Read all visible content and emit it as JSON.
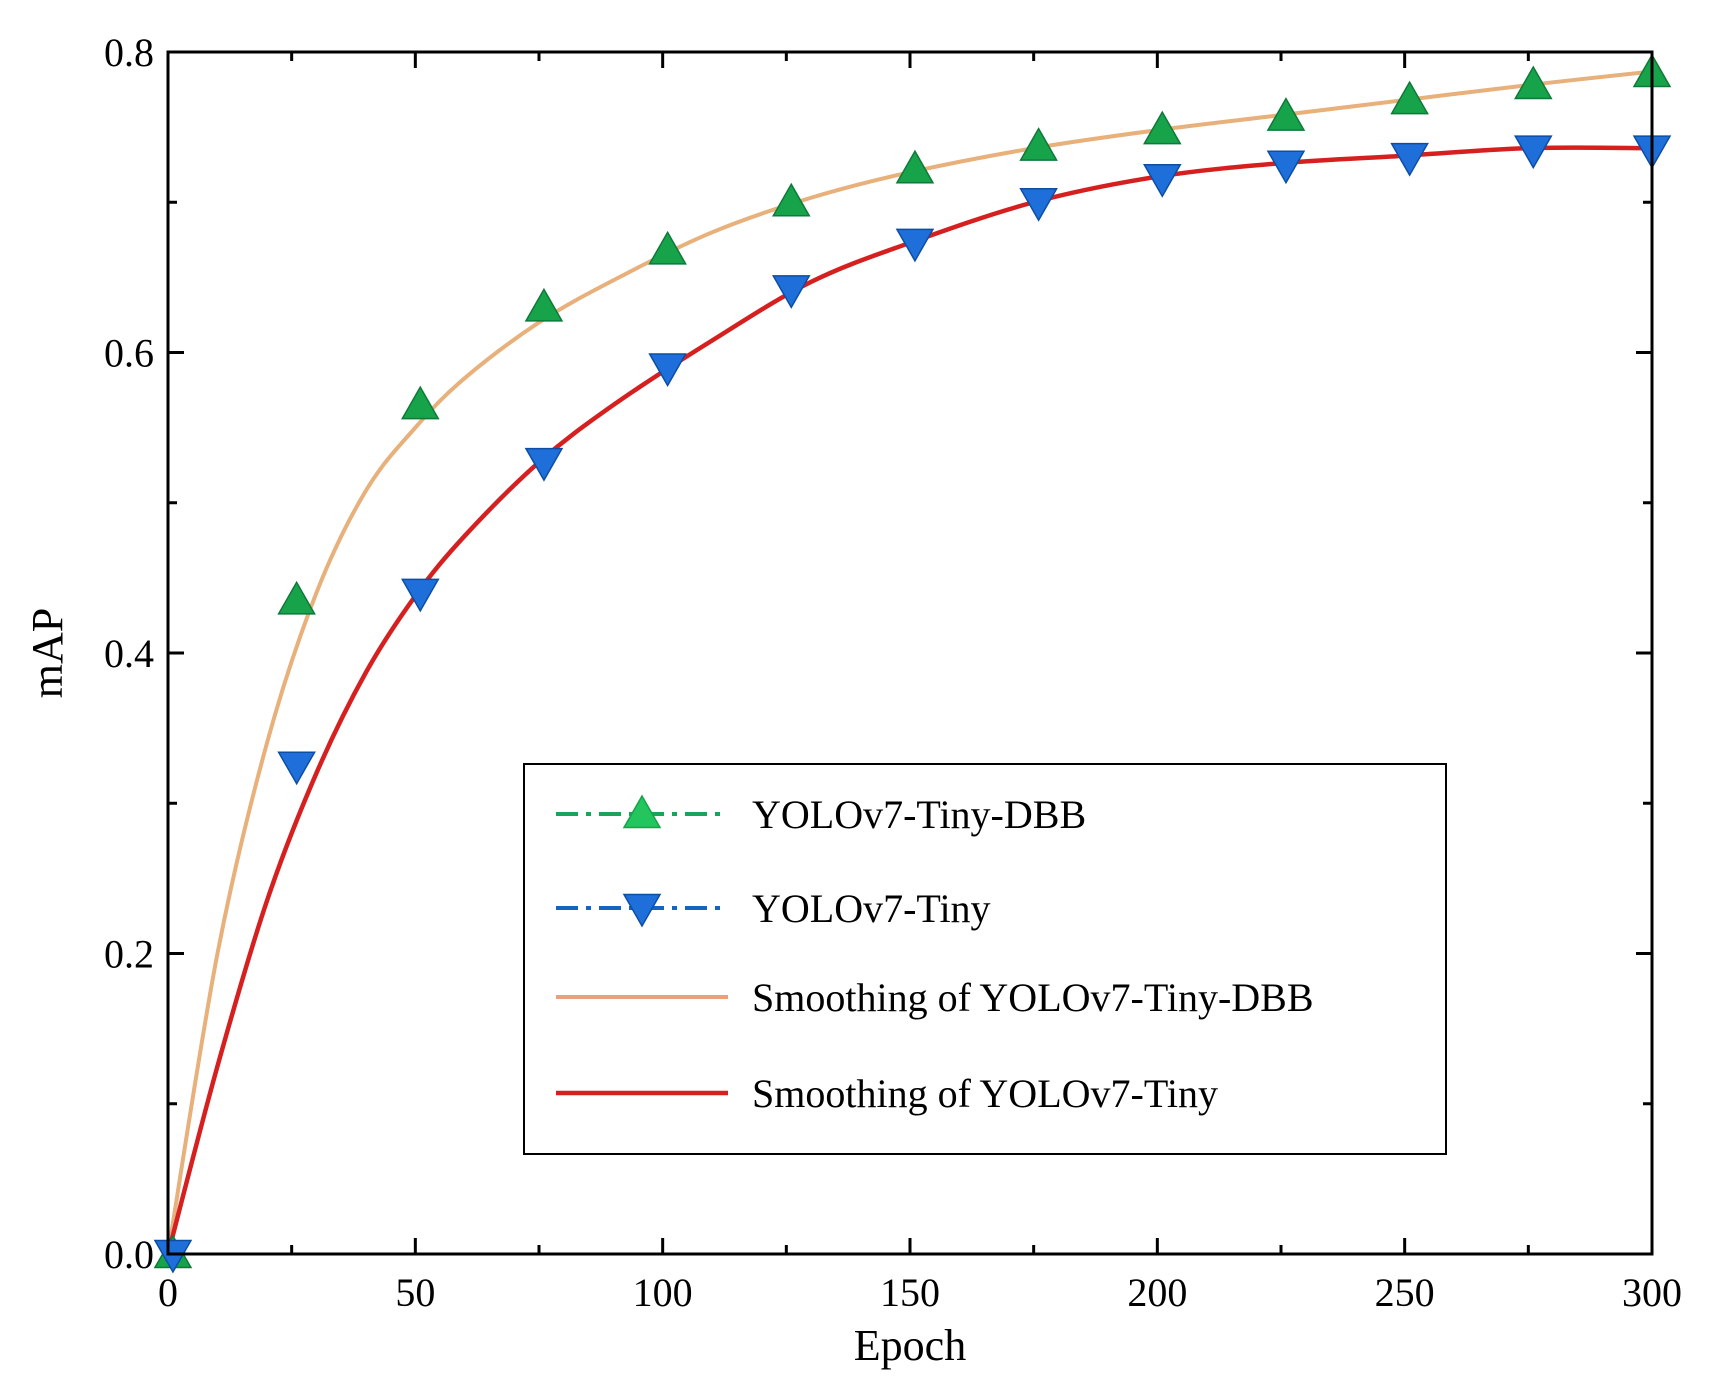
{
  "chart_data": {
    "type": "line",
    "title": "",
    "xlabel": "Epoch",
    "ylabel": "mAP",
    "xlim": [
      0,
      300
    ],
    "ylim": [
      0,
      0.8
    ],
    "xticks": [
      "0",
      "50",
      "100",
      "150",
      "200",
      "250",
      "300"
    ],
    "yticks": [
      "0.0",
      "0.2",
      "0.4",
      "0.6",
      "0.8"
    ],
    "grid": false,
    "legend_position": "lower-right",
    "series": [
      {
        "name": "YOLOv7-Tiny-DBB",
        "style": "dash-dot with triangle-up markers",
        "color": "#1aa35a",
        "marker_color": "#16a34a",
        "x": [
          1,
          26,
          51,
          76,
          101,
          126,
          151,
          176,
          201,
          226,
          251,
          276,
          300
        ],
        "y": [
          0.0,
          0.435,
          0.565,
          0.63,
          0.668,
          0.7,
          0.722,
          0.737,
          0.748,
          0.757,
          0.768,
          0.778,
          0.786
        ]
      },
      {
        "name": "YOLOv7-Tiny",
        "style": "dash-dot with triangle-down markers",
        "color": "#1565c0",
        "marker_color": "#1e6fd9",
        "x": [
          1,
          26,
          51,
          76,
          101,
          126,
          151,
          176,
          201,
          226,
          251,
          276,
          300
        ],
        "y": [
          0.0,
          0.325,
          0.44,
          0.527,
          0.59,
          0.642,
          0.673,
          0.7,
          0.716,
          0.725,
          0.73,
          0.735,
          0.735
        ]
      },
      {
        "name": "Smoothing of YOLOv7-Tiny-DBB",
        "style": "solid",
        "color": "#e8b07a",
        "x": [
          0,
          10,
          20,
          30,
          40,
          50,
          60,
          75,
          90,
          110,
          130,
          150,
          175,
          200,
          225,
          250,
          275,
          300
        ],
        "y": [
          0.0,
          0.2,
          0.34,
          0.44,
          0.508,
          0.55,
          0.583,
          0.62,
          0.648,
          0.68,
          0.703,
          0.72,
          0.736,
          0.748,
          0.758,
          0.768,
          0.778,
          0.787
        ]
      },
      {
        "name": "Smoothing of YOLOv7-Tiny",
        "style": "solid",
        "color": "#d62020",
        "x": [
          0,
          10,
          20,
          30,
          40,
          50,
          60,
          75,
          90,
          110,
          130,
          150,
          175,
          200,
          225,
          250,
          275,
          300
        ],
        "y": [
          0.0,
          0.125,
          0.235,
          0.32,
          0.387,
          0.438,
          0.478,
          0.527,
          0.565,
          0.608,
          0.647,
          0.673,
          0.7,
          0.717,
          0.726,
          0.731,
          0.736,
          0.736
        ]
      }
    ],
    "legend_entries": [
      "YOLOv7-Tiny-DBB",
      "YOLOv7-Tiny",
      "Smoothing of YOLOv7-Tiny-DBB",
      "Smoothing of YOLOv7-Tiny"
    ]
  }
}
